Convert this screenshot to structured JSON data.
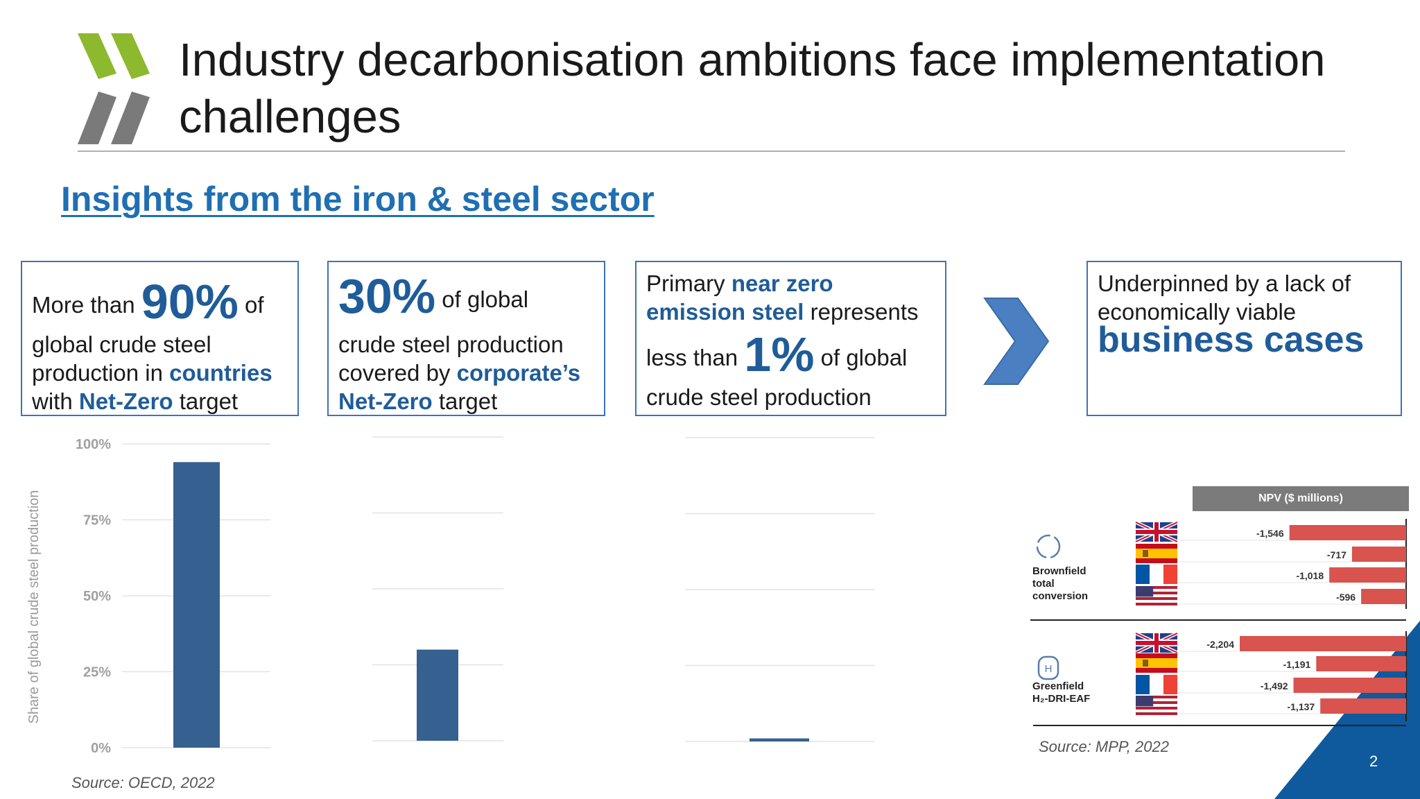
{
  "slide": {
    "title": "Industry decarbonisation ambitions face implementation challenges",
    "subtitle": "Insights from the iron & steel sector",
    "page_number": "2",
    "colors": {
      "accent": "#1f5c99",
      "logo_green": "#8db92e",
      "logo_gray": "#7a7a7a",
      "corner": "#0e5a9c"
    }
  },
  "boxes": {
    "box1": {
      "pre": "More than",
      "big": "90%",
      "post": "of",
      "line2": "global crude steel",
      "line3a": "production in",
      "line3b": "countries",
      "line4a": "with",
      "line4b": "Net-Zero",
      "line4c": "target"
    },
    "box2": {
      "big": "30%",
      "post": "of global",
      "line2": "crude steel production",
      "line3a": "covered by",
      "line3b": "corporate’s",
      "line4a": "Net-Zero",
      "line4b": "target"
    },
    "box3": {
      "line1a": "Primary",
      "line1b": "near zero",
      "line2a": "emission steel",
      "line2b": "represents",
      "line3a": "less than",
      "big": "1%",
      "line3b": "of global",
      "line4": "crude steel production"
    },
    "box4": {
      "line1": "Underpinned by a lack of",
      "line2": "economically viable",
      "big": "business cases"
    }
  },
  "chart_data": [
    {
      "type": "bar",
      "categories": [
        "Countries with Net-Zero target"
      ],
      "values": [
        94
      ],
      "ylabel": "Share of global crude steel production",
      "yticks": [
        "0%",
        "25%",
        "50%",
        "75%",
        "100%"
      ],
      "ylim": [
        0,
        100
      ],
      "grid": true
    },
    {
      "type": "bar",
      "categories": [
        "Corporate Net-Zero target"
      ],
      "values": [
        30
      ],
      "ylim": [
        0,
        100
      ],
      "grid": true
    },
    {
      "type": "bar",
      "categories": [
        "Near zero emission steel"
      ],
      "values": [
        1
      ],
      "ylim": [
        0,
        100
      ],
      "grid": true
    },
    {
      "type": "bar",
      "orientation": "horizontal",
      "header": "NPV ($ millions)",
      "groups": [
        {
          "label_lines": [
            "Brownfield",
            "total",
            "conversion"
          ],
          "icon": "recycle-icon",
          "rows": [
            {
              "flag": "uk-flag",
              "value": -1546,
              "label": "-1,546"
            },
            {
              "flag": "spain-flag",
              "value": -717,
              "label": "-717"
            },
            {
              "flag": "france-flag",
              "value": -1018,
              "label": "-1,018"
            },
            {
              "flag": "usa-flag",
              "value": -596,
              "label": "-596"
            }
          ]
        },
        {
          "label_lines": [
            "Greenfield",
            "H₂-DRI-EAF"
          ],
          "icon": "hydrogen-tank-icon",
          "rows": [
            {
              "flag": "uk-flag",
              "value": -2204,
              "label": "-2,204"
            },
            {
              "flag": "spain-flag",
              "value": -1191,
              "label": "-1,191"
            },
            {
              "flag": "france-flag",
              "value": -1492,
              "label": "-1,492"
            },
            {
              "flag": "usa-flag",
              "value": -1137,
              "label": "-1,137"
            }
          ]
        }
      ],
      "bar_color": "#d9534f"
    }
  ],
  "sources": {
    "left": "Source: OECD, 2022",
    "right": "Source: MPP, 2022"
  },
  "npv_icon_h": "H"
}
